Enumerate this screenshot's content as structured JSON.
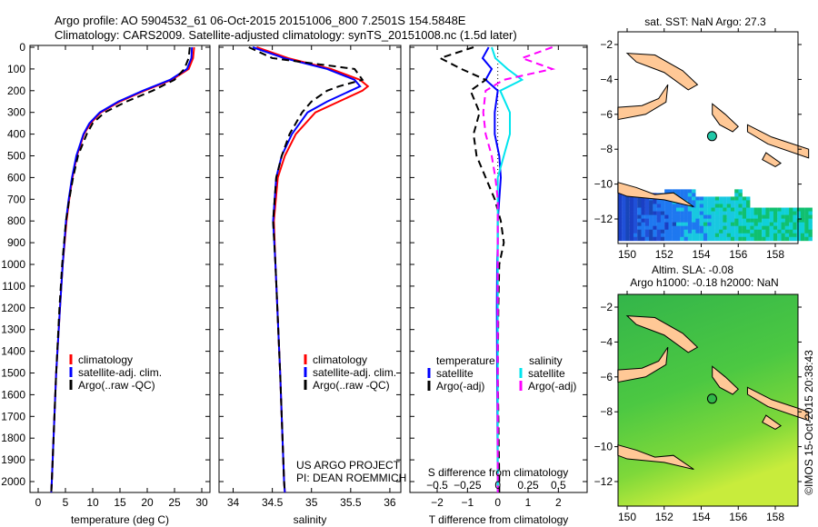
{
  "title": {
    "line1": "Argo profile: AO 5904532_61 06-Oct-2015 20151006_800 7.2501S 154.5848E",
    "line2": "Climatology: CARS2009. Satellite-adjusted climatology: synTS_20151008.nc (1.5d later)"
  },
  "colors": {
    "climatology": "#ff0000",
    "satellite": "#0000ff",
    "argo": "#000000",
    "sal_satellite": "#00e5ee",
    "sal_argo": "#ff00ff",
    "land": "#ffc896"
  },
  "credits": {
    "project": "US ARGO PROJECT",
    "pi": "PI: DEAN ROEMMICH",
    "imos": "©IMOS 15-Oct-2015 20:38:43"
  },
  "chart_data": [
    {
      "type": "line",
      "id": "temperature",
      "xlabel": "temperature (deg C)",
      "xlim": [
        -2,
        31
      ],
      "ylim": [
        2050,
        0
      ],
      "xticks": [
        0,
        5,
        10,
        15,
        20,
        25,
        30
      ],
      "yticks": [
        0,
        100,
        200,
        300,
        400,
        500,
        600,
        700,
        800,
        900,
        1000,
        1100,
        1200,
        1300,
        1400,
        1500,
        1600,
        1700,
        1800,
        1900,
        2000
      ],
      "legend": [
        "climatology",
        "satellite-adj. clim.",
        "Argo(..raw -QC)"
      ],
      "depth": [
        0,
        50,
        100,
        150,
        200,
        250,
        300,
        350,
        400,
        500,
        600,
        700,
        800,
        1000,
        1200,
        1500,
        2000,
        2050
      ],
      "series": [
        {
          "name": "climatology",
          "values": [
            28.6,
            28.4,
            27.6,
            24.5,
            19.5,
            15,
            11.5,
            9.6,
            8.4,
            7.1,
            6.3,
            5.7,
            5.2,
            4.5,
            4,
            3.3,
            2.5,
            2.4
          ]
        },
        {
          "name": "satellite-adj. clim.",
          "values": [
            28.2,
            28.1,
            27.3,
            24.2,
            19.2,
            14.7,
            11.3,
            9.4,
            8.3,
            7,
            6.2,
            5.6,
            5.1,
            4.5,
            4,
            3.3,
            2.5,
            2.4
          ]
        },
        {
          "name": "Argo(..raw -QC)",
          "values": [
            27.8,
            27.6,
            26.8,
            25,
            21,
            16.2,
            12.2,
            10,
            8.9,
            7.3,
            6.4,
            5.7,
            5.1,
            4.4,
            3.9,
            3.3,
            2.5,
            2.4
          ]
        }
      ]
    },
    {
      "type": "line",
      "id": "salinity",
      "xlabel": "salinity",
      "xlim": [
        33.8,
        36.1
      ],
      "ylim": [
        2050,
        0
      ],
      "xticks": [
        34,
        34.5,
        35,
        35.5,
        36
      ],
      "legend": [
        "climatology",
        "satellite-adj. clim.",
        "Argo(..raw -QC)"
      ],
      "depth": [
        0,
        50,
        100,
        150,
        180,
        200,
        250,
        300,
        400,
        500,
        600,
        800,
        1000,
        1500,
        2000,
        2050
      ],
      "series": [
        {
          "name": "climatology",
          "values": [
            34.3,
            34.7,
            35.25,
            35.62,
            35.72,
            35.65,
            35.35,
            35.05,
            34.8,
            34.66,
            34.57,
            34.52,
            34.54,
            34.6,
            34.65,
            34.66
          ]
        },
        {
          "name": "satellite-adj. clim.",
          "values": [
            34.25,
            34.65,
            35.2,
            35.55,
            35.62,
            35.5,
            35.2,
            34.95,
            34.75,
            34.62,
            34.55,
            34.51,
            34.54,
            34.6,
            34.65,
            34.66
          ]
        },
        {
          "name": "Argo(..raw -QC)",
          "values": [
            34.2,
            34.5,
            35.55,
            35.65,
            35.35,
            35.2,
            35.0,
            34.88,
            34.72,
            34.62,
            34.55,
            34.51,
            34.54,
            34.6,
            34.65,
            34.66
          ]
        }
      ]
    },
    {
      "type": "line",
      "id": "difference",
      "xlabel": "T difference from climatology",
      "x2label": "S difference from climatology",
      "xlim": [
        -2.8,
        2.9
      ],
      "ylim": [
        2050,
        0
      ],
      "xticks": [
        -2,
        -1,
        0,
        1,
        2
      ],
      "x2ticks": [
        -0.5,
        -0.25,
        0,
        0.25,
        0.5
      ],
      "legend": {
        "temperature": "temperature",
        "salinity": "salinity",
        "t_sat": "satellite",
        "t_argo": "Argo(-adj)",
        "s_sat": "satellite",
        "s_argo": "Argo(-adj)"
      },
      "depth": [
        0,
        50,
        100,
        150,
        200,
        300,
        400,
        500,
        600,
        700,
        800,
        900,
        1000,
        1200,
        1500,
        2000,
        2050
      ],
      "series": [
        {
          "name": "T satellite",
          "unit": "degC",
          "values": [
            -0.3,
            -0.5,
            -0.2,
            -0.4,
            0,
            -0.1,
            -0.1,
            0.05,
            0.1,
            0.05,
            0,
            0,
            -0.02,
            -0.03,
            -0.02,
            0,
            0
          ]
        },
        {
          "name": "T Argo(-adj)",
          "unit": "degC",
          "values": [
            -0.8,
            -1.9,
            -1.2,
            -0.4,
            -0.9,
            -0.6,
            -0.8,
            -0.7,
            -0.4,
            -0.1,
            0.1,
            0.2,
            0.05,
            0.02,
            0,
            0.05,
            0.05
          ]
        },
        {
          "name": "S satellite",
          "unit": "psu",
          "values": [
            -0.05,
            -0.02,
            0.08,
            0.2,
            0.02,
            0.1,
            0.1,
            0.05,
            0.0,
            0.0,
            0,
            0,
            0,
            0,
            0,
            0,
            0
          ]
        },
        {
          "name": "S Argo(-adj)",
          "unit": "psu",
          "values": [
            0.45,
            0.2,
            0.45,
            0.05,
            -0.1,
            -0.12,
            -0.1,
            -0.05,
            -0.02,
            0.0,
            0,
            0,
            0,
            0,
            0,
            0,
            0
          ]
        }
      ]
    },
    {
      "type": "heatmap",
      "id": "sst_map",
      "title": "sat. SST: NaN Argo: 27.3",
      "xticks": [
        150,
        152,
        154,
        156,
        158
      ],
      "yticks": [
        -2,
        -4,
        -6,
        -8,
        -10,
        -12
      ],
      "argo_lon": 154.5848,
      "argo_lat": -7.2501
    },
    {
      "type": "heatmap",
      "id": "sla_map",
      "title1": "Altim. SLA: -0.08",
      "title2": "Argo h1000: -0.18 h2000: NaN",
      "xticks": [
        150,
        152,
        154,
        156,
        158
      ],
      "yticks": [
        -2,
        -4,
        -6,
        -8,
        -10,
        -12
      ],
      "argo_lon": 154.5848,
      "argo_lat": -7.2501
    }
  ]
}
